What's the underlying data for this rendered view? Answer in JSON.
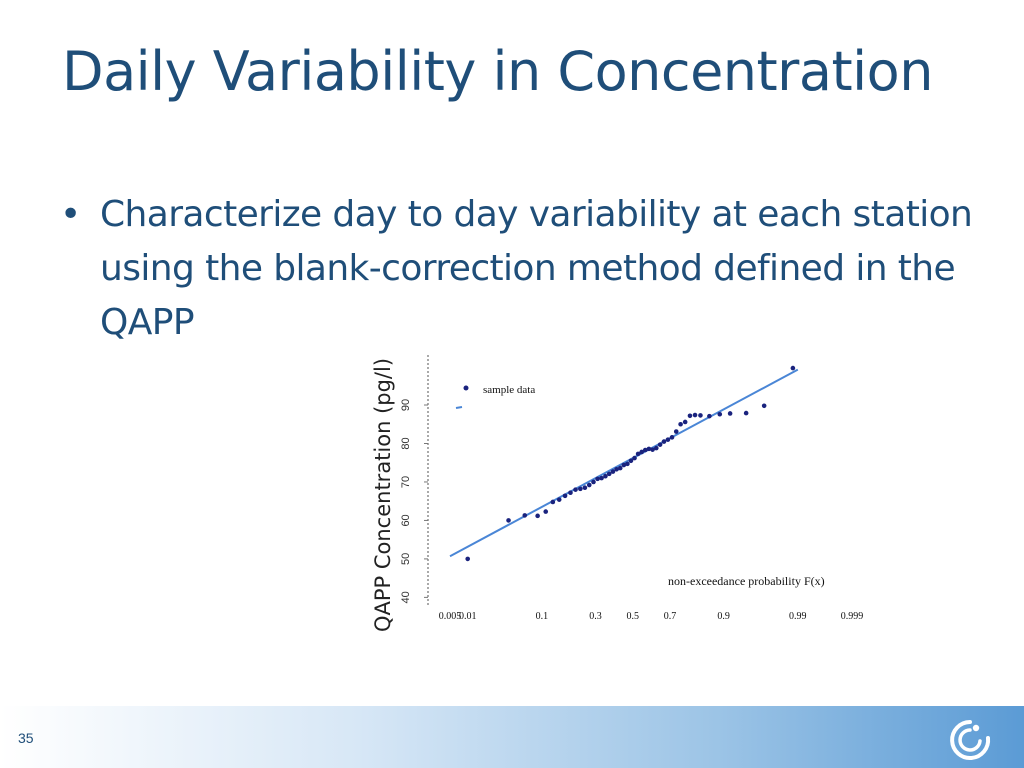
{
  "slide": {
    "title": "Daily Variability in Concentration",
    "bullets": [
      "Characterize day to day variability at each station using the blank-correction method defined in the QAPP"
    ],
    "page_number": "35",
    "logo_icon": "swirl-logo-icon"
  },
  "chart_data": {
    "type": "scatter",
    "ylabel": "QAPP Concentration (pg/l)",
    "xlabel": "non-exceedance probability F(x)",
    "x_scale": "normal-probability",
    "x_ticks": [
      "0.005",
      "0.01",
      "0.1",
      "0.3",
      "0.5",
      "0.7",
      "0.9",
      "0.99",
      "0.999"
    ],
    "y_ticks": [
      "40",
      "50",
      "60",
      "70",
      "80",
      "90"
    ],
    "ylim": [
      37.5,
      103
    ],
    "legend": {
      "label": "sample data",
      "position": "top-left"
    },
    "grid": false,
    "colors": {
      "points": "#1a237e",
      "fit_line": "#4a86d6",
      "text": "#1f4e79"
    },
    "series": [
      {
        "name": "sample data",
        "points": [
          [
            0.01,
            50
          ],
          [
            0.04,
            60
          ],
          [
            0.064,
            61.3
          ],
          [
            0.09,
            61.2
          ],
          [
            0.11,
            62.3
          ],
          [
            0.13,
            64.8
          ],
          [
            0.15,
            65.4
          ],
          [
            0.17,
            66.4
          ],
          [
            0.19,
            67.2
          ],
          [
            0.21,
            68
          ],
          [
            0.23,
            68.2
          ],
          [
            0.25,
            68.5
          ],
          [
            0.27,
            69.2
          ],
          [
            0.29,
            70
          ],
          [
            0.31,
            70.8
          ],
          [
            0.33,
            71
          ],
          [
            0.35,
            71.5
          ],
          [
            0.37,
            72.1
          ],
          [
            0.39,
            72.7
          ],
          [
            0.41,
            73.3
          ],
          [
            0.43,
            73.6
          ],
          [
            0.45,
            74.4
          ],
          [
            0.47,
            74.7
          ],
          [
            0.49,
            75.5
          ],
          [
            0.51,
            76.2
          ],
          [
            0.53,
            77.3
          ],
          [
            0.55,
            77.8
          ],
          [
            0.57,
            78.3
          ],
          [
            0.59,
            78.6
          ],
          [
            0.61,
            78.4
          ],
          [
            0.63,
            78.8
          ],
          [
            0.65,
            79.7
          ],
          [
            0.67,
            80.5
          ],
          [
            0.69,
            81
          ],
          [
            0.71,
            81.6
          ],
          [
            0.73,
            83.1
          ],
          [
            0.75,
            85
          ],
          [
            0.77,
            85.6
          ],
          [
            0.79,
            87.2
          ],
          [
            0.81,
            87.4
          ],
          [
            0.83,
            87.3
          ],
          [
            0.86,
            87.1
          ],
          [
            0.89,
            87.6
          ],
          [
            0.915,
            87.8
          ],
          [
            0.945,
            87.9
          ],
          [
            0.968,
            89.8
          ],
          [
            0.988,
            99.6
          ]
        ]
      }
    ],
    "fit_line": [
      [
        0.005,
        50.7
      ],
      [
        0.99,
        99.2
      ]
    ]
  }
}
